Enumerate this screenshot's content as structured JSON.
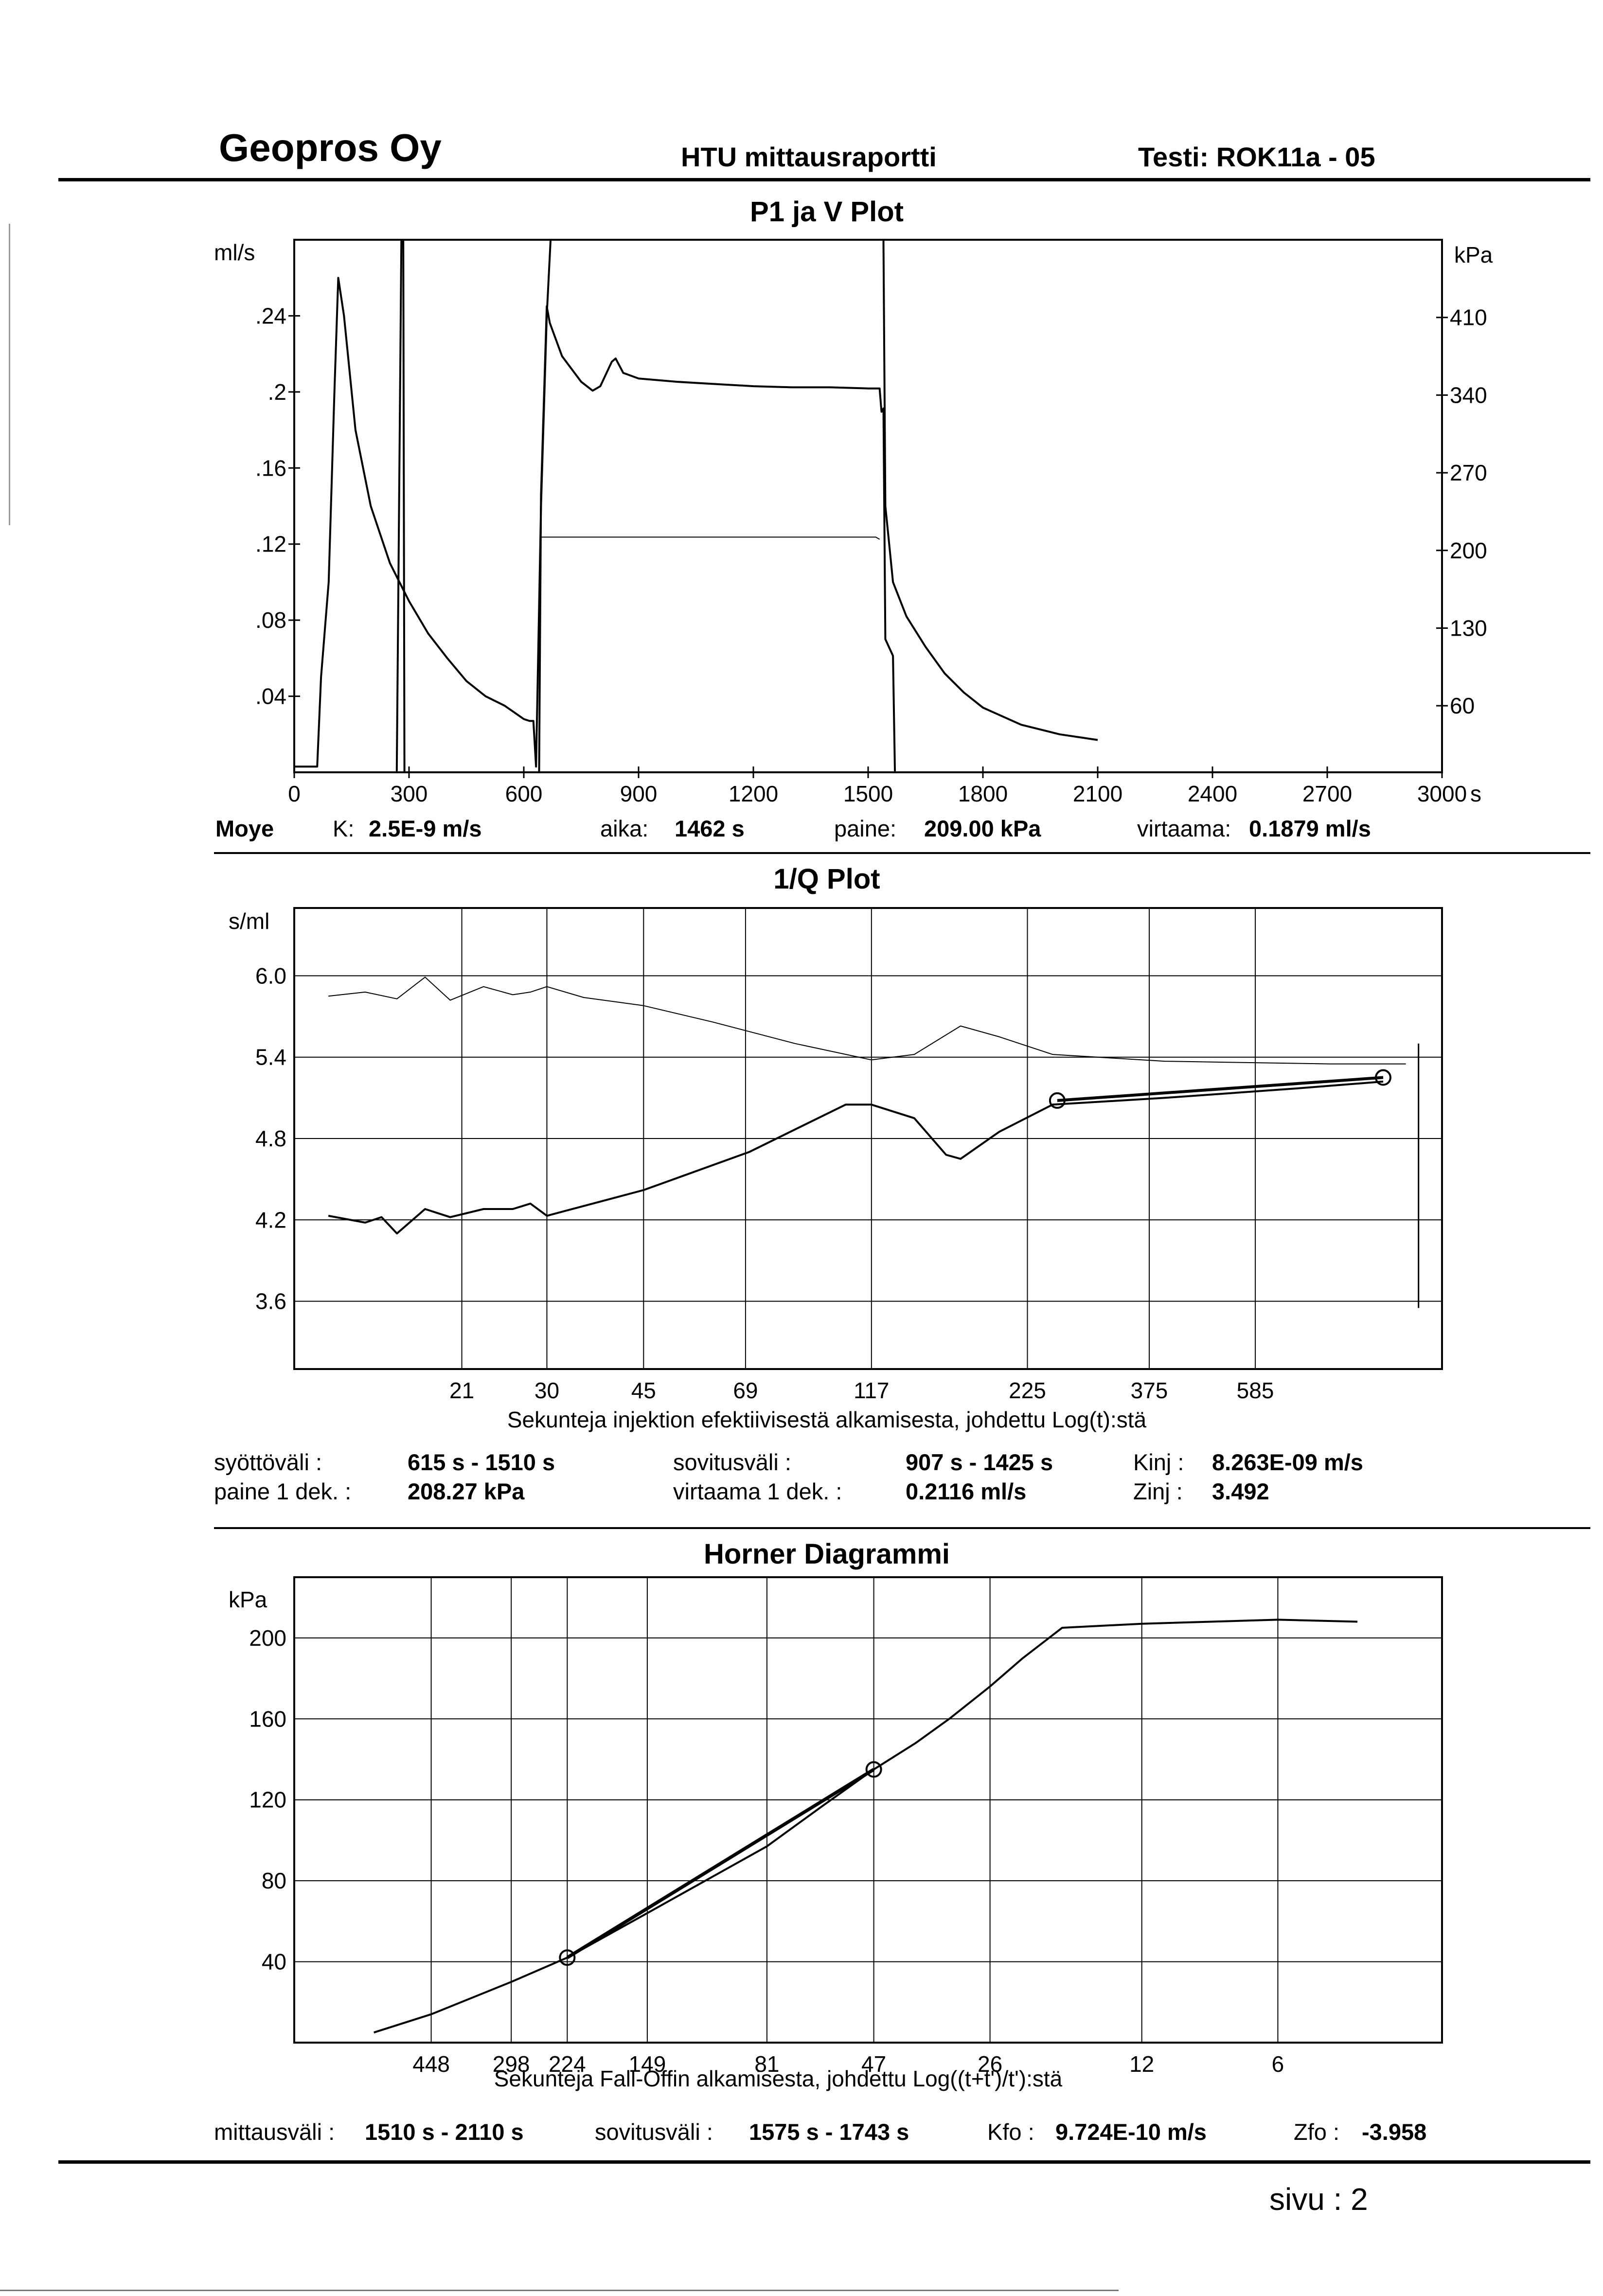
{
  "header": {
    "company": "Geopros Oy",
    "report": "HTU mittausraportti",
    "test": "Testi: ROK11a - 05"
  },
  "plot1": {
    "title": "P1 ja V Plot",
    "left_unit": "ml/s",
    "right_unit": "kPa",
    "x_unit": "s",
    "left_ticks": [
      ".24",
      ".2",
      ".16",
      ".12",
      ".08",
      ".04"
    ],
    "right_ticks": [
      "410",
      "340",
      "270",
      "200",
      "130",
      "60"
    ],
    "x_ticks": [
      "0",
      "300",
      "600",
      "900",
      "1200",
      "1500",
      "1800",
      "2100",
      "2400",
      "2700",
      "3000"
    ]
  },
  "moye": {
    "label": "Moye",
    "k_label": "K:",
    "k_value": "2.5E-9 m/s",
    "aika_label": "aika:",
    "aika_value": "1462 s",
    "paine_label": "paine:",
    "paine_value": "209.00 kPa",
    "virtaama_label": "virtaama:",
    "virtaama_value": "0.1879 ml/s"
  },
  "plot2": {
    "title": "1/Q Plot",
    "y_unit": "s/ml",
    "y_ticks": [
      "6.0",
      "5.4",
      "4.8",
      "4.2",
      "3.6"
    ],
    "x_ticks": [
      "21",
      "30",
      "45",
      "69",
      "117",
      "225",
      "375",
      "585"
    ],
    "xlabel": "Sekunteja injektion efektiivisestä alkamisesta, johdettu Log(t):stä"
  },
  "injection": {
    "syottovali_label": "syöttöväli :",
    "syottovali_value": "615 s -  1510 s",
    "paine_label": "paine 1 dek. :",
    "paine_value": "208.27 kPa",
    "sovitusvali_label": "sovitusväli :",
    "sovitusvali_value": "907 s  -  1425 s",
    "virtaama_label": "virtaama 1 dek. :",
    "virtaama_value": "0.2116 ml/s",
    "kinj_label": "Kinj :",
    "kinj_value": "8.263E-09 m/s",
    "zinj_label": "Zinj :",
    "zinj_value": "3.492"
  },
  "plot3": {
    "title": "Horner Diagrammi",
    "y_unit": "kPa",
    "y_ticks": [
      "200",
      "160",
      "120",
      "80",
      "40"
    ],
    "x_ticks": [
      "448",
      "298",
      "224",
      "149",
      "81",
      "47",
      "26",
      "12",
      "6"
    ],
    "xlabel": "Sekunteja Fall-Offin alkamisesta, johdettu Log((t+t')/t'):stä"
  },
  "falloff": {
    "mittausvali_label": "mittausväli :",
    "mittausvali_value": "1510 s -  2110 s",
    "sovitusvali_label": "sovitusväli :",
    "sovitusvali_value": "1575 s -  1743 s",
    "kfo_label": "Kfo :",
    "kfo_value": "9.724E-10 m/s",
    "zfo_label": "Zfo :",
    "zfo_value": "-3.958"
  },
  "footer": {
    "page": "sivu :  2"
  },
  "chart_data": [
    {
      "type": "line",
      "title": "P1 ja V Plot",
      "x": {
        "unit": "s",
        "range": [
          0,
          3000
        ]
      },
      "y_left": {
        "unit": "ml/s",
        "range": [
          0,
          0.28
        ]
      },
      "y_right": {
        "unit": "kPa",
        "range": [
          0,
          480
        ]
      },
      "grid": false,
      "series": [
        {
          "axis": "left",
          "points": [
            [
              0,
              0.003
            ],
            [
              60,
              0.003
            ],
            [
              70,
              0.05
            ],
            [
              90,
              0.1
            ],
            [
              105,
              0.2
            ],
            [
              115,
              0.26
            ],
            [
              130,
              0.24
            ],
            [
              160,
              0.18
            ],
            [
              200,
              0.14
            ],
            [
              250,
              0.11
            ],
            [
              300,
              0.09
            ],
            [
              350,
              0.073
            ],
            [
              400,
              0.06
            ],
            [
              450,
              0.048
            ],
            [
              500,
              0.04
            ],
            [
              550,
              0.035
            ],
            [
              600,
              0.028
            ],
            [
              615,
              0.027
            ],
            [
              625,
              0.027
            ],
            [
              632,
              0.003
            ],
            [
              645,
              0.14
            ],
            [
              660,
              0.24
            ],
            [
              670,
              0.28
            ],
            [
              1540,
              0.28
            ],
            [
              1545,
              0.14
            ],
            [
              1555,
              0.12
            ],
            [
              1565,
              0.1
            ],
            [
              1600,
              0.082
            ],
            [
              1650,
              0.066
            ],
            [
              1700,
              0.052
            ],
            [
              1750,
              0.042
            ],
            [
              1800,
              0.034
            ],
            [
              1900,
              0.025
            ],
            [
              2000,
              0.02
            ],
            [
              2100,
              0.017
            ]
          ]
        },
        {
          "axis": "right",
          "points": [
            [
              0,
              0
            ],
            [
              250,
              0
            ],
            [
              268,
              0
            ],
            [
              280,
              480
            ],
            [
              285,
              480
            ],
            [
              288,
              0
            ],
            [
              640,
              0
            ],
            [
              645,
              250
            ],
            [
              660,
              420
            ],
            [
              668,
              405
            ],
            [
              700,
              375
            ],
            [
              750,
              352
            ],
            [
              780,
              344
            ],
            [
              800,
              348
            ],
            [
              830,
              370
            ],
            [
              840,
              373
            ],
            [
              860,
              360
            ],
            [
              900,
              355
            ],
            [
              1000,
              352
            ],
            [
              1100,
              350
            ],
            [
              1200,
              348
            ],
            [
              1300,
              347
            ],
            [
              1400,
              347
            ],
            [
              1500,
              346
            ],
            [
              1530,
              346
            ],
            [
              1535,
              325
            ],
            [
              1540,
              328
            ],
            [
              1545,
              120
            ],
            [
              1565,
              105
            ],
            [
              1570,
              0
            ]
          ]
        },
        {
          "axis": "right",
          "points": [
            [
              645,
              212
            ],
            [
              1520,
              212
            ],
            [
              1530,
              210
            ]
          ]
        }
      ]
    },
    {
      "type": "line",
      "title": "1/Q Plot",
      "y": {
        "unit": "s/ml",
        "range": [
          3.1,
          6.5
        ]
      },
      "x_scale": "log (Sekunteja, tick labels)",
      "grid": true,
      "series": [
        {
          "points": [
            [
              12,
              5.85
            ],
            [
              14,
              5.88
            ],
            [
              16,
              5.83
            ],
            [
              18,
              5.99
            ],
            [
              20,
              5.82
            ],
            [
              23,
              5.92
            ],
            [
              26,
              5.86
            ],
            [
              28,
              5.88
            ],
            [
              30,
              5.92
            ],
            [
              35,
              5.84
            ],
            [
              45,
              5.78
            ],
            [
              60,
              5.66
            ],
            [
              85,
              5.5
            ],
            [
              117,
              5.38
            ],
            [
              140,
              5.42
            ],
            [
              170,
              5.63
            ],
            [
              200,
              5.55
            ],
            [
              250,
              5.42
            ],
            [
              400,
              5.37
            ],
            [
              800,
              5.35
            ],
            [
              1100,
              5.35
            ]
          ]
        },
        {
          "points": [
            [
              12,
              4.23
            ],
            [
              14,
              4.18
            ],
            [
              15,
              4.22
            ],
            [
              16,
              4.1
            ],
            [
              18,
              4.28
            ],
            [
              20,
              4.22
            ],
            [
              23,
              4.28
            ],
            [
              26,
              4.28
            ],
            [
              28,
              4.32
            ],
            [
              30,
              4.23
            ],
            [
              45,
              4.42
            ],
            [
              70,
              4.7
            ],
            [
              105,
              5.05
            ],
            [
              117,
              5.05
            ],
            [
              140,
              4.95
            ],
            [
              160,
              4.68
            ],
            [
              170,
              4.65
            ],
            [
              200,
              4.85
            ],
            [
              250,
              5.05
            ],
            [
              400,
              5.1
            ],
            [
              700,
              5.17
            ],
            [
              1000,
              5.22
            ]
          ]
        },
        {
          "points": [
            [
              255,
              5.08
            ],
            [
              1000,
              5.25
            ]
          ]
        },
        {
          "points": [
            [
              1160,
              5.5
            ],
            [
              1160,
              3.55
            ]
          ]
        }
      ],
      "markers": [
        [
          255,
          5.08
        ],
        [
          1000,
          5.25
        ]
      ]
    },
    {
      "type": "line",
      "title": "Horner Diagrammi",
      "y": {
        "unit": "kPa",
        "range": [
          0,
          230
        ]
      },
      "x_scale": "log reversed (Sekunteja, tick labels)",
      "grid": true,
      "series": [
        {
          "points": [
            [
              600,
              5
            ],
            [
              448,
              14
            ],
            [
              298,
              30
            ],
            [
              224,
              42
            ],
            [
              149,
              64
            ],
            [
              81,
              97
            ],
            [
              61,
              117
            ],
            [
              47,
              135
            ],
            [
              38,
              148
            ],
            [
              32,
              160
            ],
            [
              26,
              176
            ],
            [
              22,
              190
            ],
            [
              18,
              205
            ],
            [
              12,
              207
            ],
            [
              6,
              209
            ],
            [
              4,
              208
            ]
          ]
        },
        {
          "points": [
            [
              224,
              42
            ],
            [
              47,
              135
            ]
          ]
        }
      ],
      "markers": [
        [
          224,
          42
        ],
        [
          47,
          135
        ]
      ]
    }
  ]
}
